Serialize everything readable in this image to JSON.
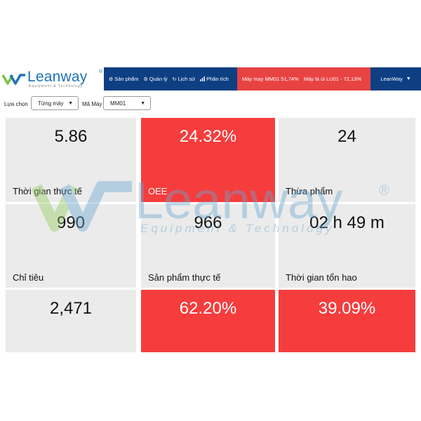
{
  "brand": {
    "name": "Leanway",
    "registered": "®",
    "tagline": "Equipment & Technology"
  },
  "nav": {
    "items": [
      {
        "icon": "gear-icon",
        "label": "Sản phẩm"
      },
      {
        "icon": "gear-icon",
        "label": "Quản lý"
      },
      {
        "icon": "refresh-icon",
        "label": "Lịch sử"
      },
      {
        "icon": "bar-chart-icon",
        "label": "Phân tích"
      }
    ]
  },
  "alert": {
    "line1": "Máy may MM01 51,74%",
    "line2": "Máy là ủi LU01 - 72,13%"
  },
  "user": {
    "label": "LeanWay"
  },
  "filters": {
    "select_label": "Lựa chọn",
    "select_value": "Từng máy",
    "machine_label": "Mã Máy",
    "machine_value": "MM01"
  },
  "cards": [
    {
      "value": "5.86",
      "label": "Thời gian thực tế",
      "status": "normal"
    },
    {
      "value": "24.32%",
      "label": "OEE",
      "status": "alert"
    },
    {
      "value": "24",
      "label": "Thừa phẩm",
      "status": "normal"
    },
    {
      "value": "990",
      "label": "Chỉ tiêu",
      "status": "normal"
    },
    {
      "value": "966",
      "label": "Sản phẩm thực tế",
      "status": "normal"
    },
    {
      "value": "02 h 49 m",
      "label": "Thời gian tổn hao",
      "status": "normal"
    },
    {
      "value": "2,471",
      "label": "",
      "status": "normal"
    },
    {
      "value": "62.20%",
      "label": "",
      "status": "alert"
    },
    {
      "value": "39.09%",
      "label": "",
      "status": "alert"
    }
  ],
  "watermark": {
    "name": "Leanway",
    "registered": "®",
    "tagline": "Equipment & Technology"
  },
  "colors": {
    "nav_bg": "#0d3f82",
    "alert_bg": "#e84343",
    "card_bg": "#ebebeb",
    "card_alert_bg": "#f53d3d",
    "brand_blue": "#1e73b8",
    "brand_green": "#7cc242"
  }
}
